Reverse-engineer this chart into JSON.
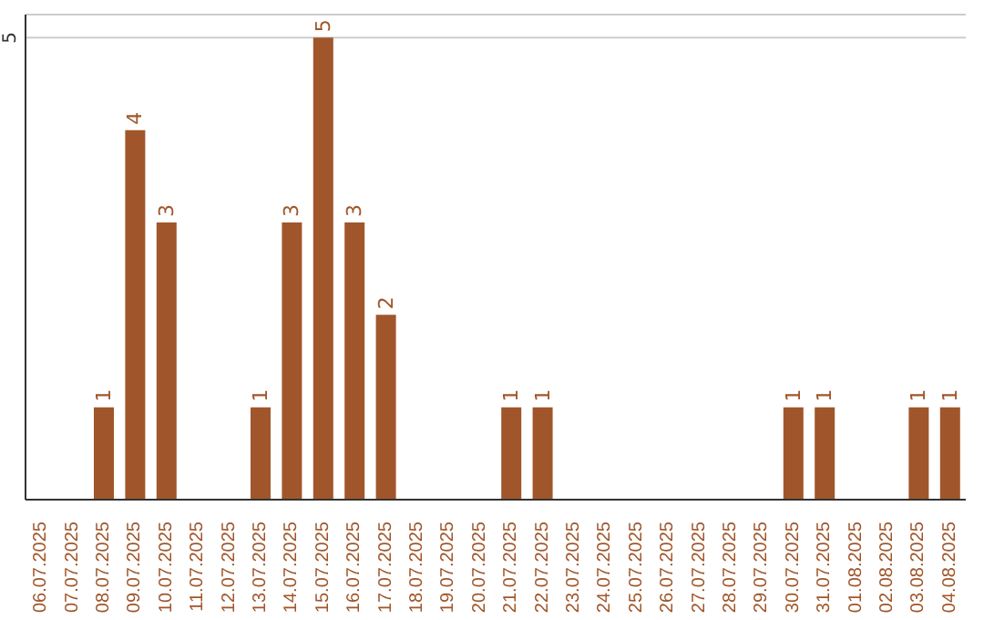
{
  "chart_data": {
    "type": "bar",
    "categories": [
      "06.07.2025",
      "07.07.2025",
      "08.07.2025",
      "09.07.2025",
      "10.07.2025",
      "11.07.2025",
      "12.07.2025",
      "13.07.2025",
      "14.07.2025",
      "15.07.2025",
      "16.07.2025",
      "17.07.2025",
      "18.07.2025",
      "19.07.2025",
      "20.07.2025",
      "21.07.2025",
      "22.07.2025",
      "23.07.2025",
      "24.07.2025",
      "25.07.2025",
      "26.07.2025",
      "27.07.2025",
      "28.07.2025",
      "29.07.2025",
      "30.07.2025",
      "31.07.2025",
      "01.08.2025",
      "02.08.2025",
      "03.08.2025",
      "04.08.2025"
    ],
    "values": [
      0,
      0,
      1,
      4,
      3,
      0,
      0,
      1,
      3,
      5,
      3,
      2,
      0,
      0,
      0,
      1,
      1,
      0,
      0,
      0,
      0,
      0,
      0,
      0,
      1,
      1,
      0,
      0,
      1,
      1
    ],
    "value_labels": [
      null,
      null,
      "1",
      "4",
      "3",
      null,
      null,
      "1",
      "3",
      "5",
      "3",
      "2",
      null,
      null,
      null,
      "1",
      "1",
      null,
      null,
      null,
      null,
      null,
      null,
      null,
      "1",
      "1",
      null,
      null,
      "1",
      "1"
    ],
    "color": "#a0562a",
    "ylim": [
      0,
      5.25
    ],
    "yticks": [
      5
    ],
    "grid": "y"
  }
}
